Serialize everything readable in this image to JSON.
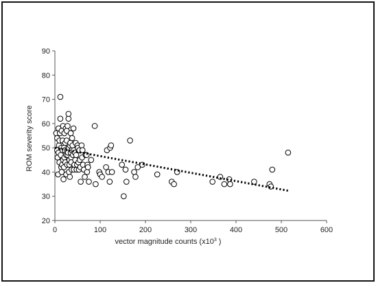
{
  "chart_data": {
    "type": "scatter",
    "title": "",
    "xlabel": "vector magnitude counts (x10",
    "xlabel_superscript": "3",
    "xlabel_suffix": " )",
    "ylabel": "ROM severity score",
    "xlim": [
      0,
      600
    ],
    "ylim": [
      20,
      90
    ],
    "xticks": [
      "0",
      "100",
      "200",
      "300",
      "400",
      "500",
      "600"
    ],
    "yticks": [
      "20",
      "30",
      "40",
      "50",
      "60",
      "70",
      "80",
      "90"
    ],
    "grid": false,
    "legend": "none",
    "marker": "open-circle",
    "trendline": {
      "style": "dotted",
      "x": [
        0,
        515
      ],
      "y": [
        50,
        32.3
      ]
    },
    "series": [
      {
        "points": [
          [
            3,
            56
          ],
          [
            5,
            54
          ],
          [
            5,
            49
          ],
          [
            6,
            46
          ],
          [
            7,
            39
          ],
          [
            8,
            48
          ],
          [
            8,
            58
          ],
          [
            9,
            51
          ],
          [
            10,
            53
          ],
          [
            10,
            44
          ],
          [
            11,
            56
          ],
          [
            12,
            62
          ],
          [
            12,
            71
          ],
          [
            13,
            47
          ],
          [
            14,
            42
          ],
          [
            14,
            50
          ],
          [
            15,
            40
          ],
          [
            15,
            57
          ],
          [
            16,
            43
          ],
          [
            17,
            49
          ],
          [
            17,
            53
          ],
          [
            18,
            45
          ],
          [
            18,
            59
          ],
          [
            19,
            37
          ],
          [
            20,
            42
          ],
          [
            20,
            50
          ],
          [
            21,
            56
          ],
          [
            21,
            46
          ],
          [
            22,
            49
          ],
          [
            23,
            44
          ],
          [
            23,
            52
          ],
          [
            24,
            58
          ],
          [
            25,
            39
          ],
          [
            25,
            47
          ],
          [
            26,
            53
          ],
          [
            26,
            57
          ],
          [
            27,
            43
          ],
          [
            27,
            49
          ],
          [
            28,
            47
          ],
          [
            28,
            59
          ],
          [
            29,
            48
          ],
          [
            30,
            62
          ],
          [
            30,
            64
          ],
          [
            31,
            50
          ],
          [
            31,
            40
          ],
          [
            32,
            43
          ],
          [
            32,
            45
          ],
          [
            33,
            38
          ],
          [
            33,
            51
          ],
          [
            34,
            52
          ],
          [
            35,
            56
          ],
          [
            35,
            48
          ],
          [
            36,
            46
          ],
          [
            36,
            44
          ],
          [
            37,
            41
          ],
          [
            37,
            49
          ],
          [
            38,
            54
          ],
          [
            39,
            51
          ],
          [
            40,
            47
          ],
          [
            41,
            58
          ],
          [
            42,
            49
          ],
          [
            42,
            41
          ],
          [
            43,
            43
          ],
          [
            44,
            48
          ],
          [
            45,
            45
          ],
          [
            46,
            52
          ],
          [
            47,
            47
          ],
          [
            48,
            41
          ],
          [
            49,
            43
          ],
          [
            50,
            51
          ],
          [
            51,
            50
          ],
          [
            52,
            44
          ],
          [
            53,
            41
          ],
          [
            54,
            49
          ],
          [
            55,
            45
          ],
          [
            56,
            42
          ],
          [
            57,
            36
          ],
          [
            59,
            51
          ],
          [
            60,
            46
          ],
          [
            61,
            49
          ],
          [
            62,
            43
          ],
          [
            64,
            41
          ],
          [
            66,
            38
          ],
          [
            68,
            47
          ],
          [
            70,
            47
          ],
          [
            71,
            40
          ],
          [
            72,
            43
          ],
          [
            73,
            42
          ],
          [
            75,
            36
          ],
          [
            80,
            45
          ],
          [
            88,
            59
          ],
          [
            90,
            35
          ],
          [
            98,
            40
          ],
          [
            100,
            39
          ],
          [
            104,
            38
          ],
          [
            113,
            42
          ],
          [
            115,
            49
          ],
          [
            118,
            40
          ],
          [
            121,
            36
          ],
          [
            122,
            50
          ],
          [
            124,
            51
          ],
          [
            126,
            40
          ],
          [
            148,
            43
          ],
          [
            152,
            30
          ],
          [
            156,
            41
          ],
          [
            158,
            36
          ],
          [
            166,
            53
          ],
          [
            175,
            40
          ],
          [
            178,
            38
          ],
          [
            183,
            42
          ],
          [
            193,
            43
          ],
          [
            226,
            39
          ],
          [
            258,
            36
          ],
          [
            263,
            35
          ],
          [
            270,
            40
          ],
          [
            348,
            36
          ],
          [
            365,
            38
          ],
          [
            374,
            35
          ],
          [
            385,
            37
          ],
          [
            387,
            35
          ],
          [
            440,
            36
          ],
          [
            474,
            35
          ],
          [
            477,
            34
          ],
          [
            480,
            41
          ],
          [
            515,
            48
          ]
        ]
      }
    ]
  }
}
